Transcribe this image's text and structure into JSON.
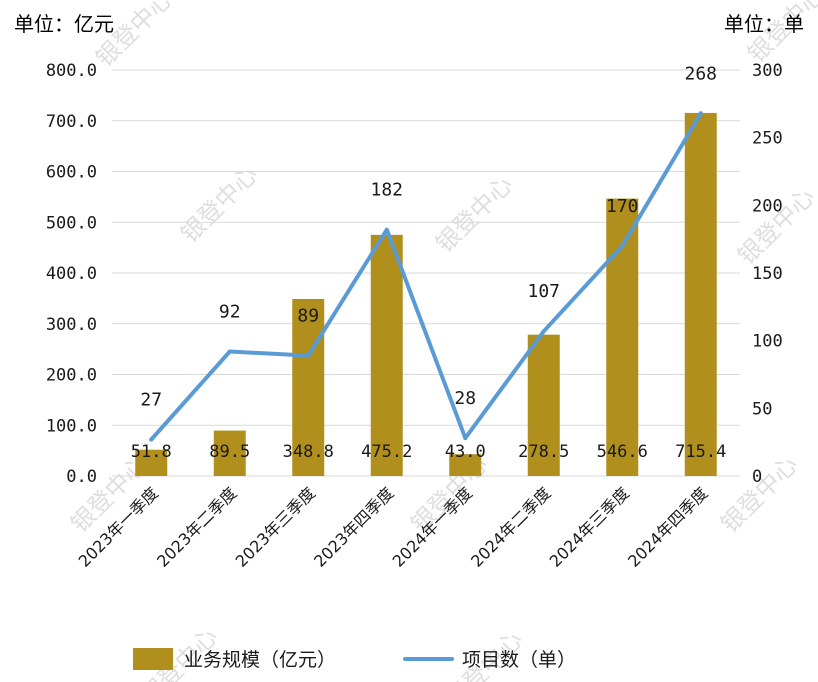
{
  "chart_data": {
    "type": "bar",
    "categories": [
      "2023年一季度",
      "2023年二季度",
      "2023年三季度",
      "2023年四季度",
      "2024年一季度",
      "2024年二季度",
      "2024年三季度",
      "2024年四季度"
    ],
    "series": [
      {
        "name": "业务规模（亿元）",
        "type": "bar",
        "axis": "left",
        "values": [
          51.8,
          89.5,
          348.8,
          475.2,
          43.0,
          278.5,
          546.6,
          715.4
        ],
        "labels": [
          "51.8",
          "89.5",
          "348.8",
          "475.2",
          "43.0",
          "278.5",
          "546.6",
          "715.4"
        ],
        "color": "#b08f1c"
      },
      {
        "name": "项目数（单）",
        "type": "line",
        "axis": "right",
        "values": [
          27,
          92,
          89,
          182,
          28,
          107,
          170,
          268
        ],
        "labels": [
          "27",
          "92",
          "89",
          "182",
          "28",
          "107",
          "170",
          "268"
        ],
        "color": "#5b9bd5"
      }
    ],
    "left_axis": {
      "unit_label": "单位：亿元",
      "ylim": [
        0,
        800
      ],
      "ticks": [
        "0.0",
        "100.0",
        "200.0",
        "300.0",
        "400.0",
        "500.0",
        "600.0",
        "700.0",
        "800.0"
      ]
    },
    "right_axis": {
      "unit_label": "单位：单",
      "ylim": [
        0,
        300
      ],
      "ticks": [
        "0",
        "50",
        "100",
        "150",
        "200",
        "250",
        "300"
      ]
    },
    "grid": true,
    "legend_position": "bottom",
    "watermark": "银登中心"
  }
}
